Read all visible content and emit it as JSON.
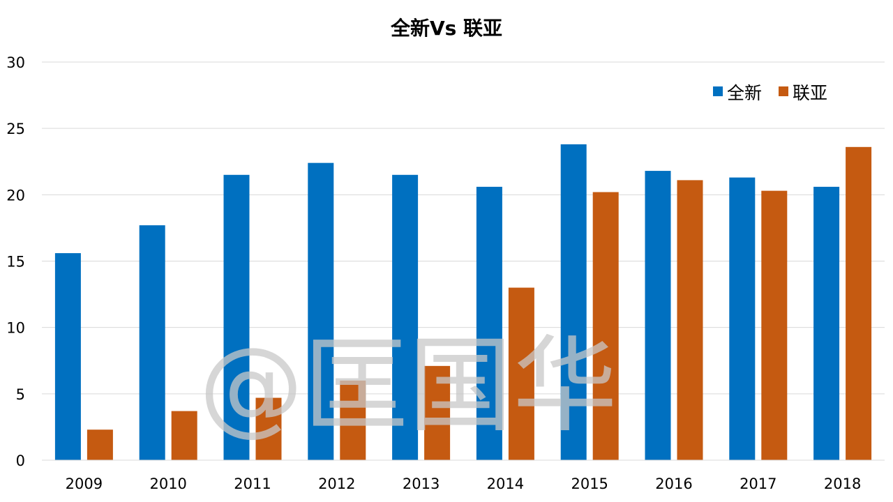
{
  "chart_data": {
    "type": "bar",
    "title": "全新Vs 联亚",
    "xlabel": "",
    "ylabel": "",
    "categories": [
      "2009",
      "2010",
      "2011",
      "2012",
      "2013",
      "2014",
      "2015",
      "2016",
      "2017",
      "2018"
    ],
    "series": [
      {
        "name": "全新",
        "color": "#0070C0",
        "values": [
          15.6,
          17.7,
          21.5,
          22.4,
          21.5,
          20.6,
          23.8,
          21.8,
          21.3,
          20.6
        ]
      },
      {
        "name": "联亚",
        "color": "#C55A11",
        "values": [
          2.3,
          3.7,
          4.7,
          6.0,
          7.1,
          13.0,
          20.2,
          21.1,
          20.3,
          23.6
        ]
      }
    ],
    "ylim": [
      0,
      30
    ],
    "yticks": [
      0,
      5,
      10,
      15,
      20,
      25,
      30
    ],
    "grid": true,
    "legend_position": "top-right"
  },
  "watermark": "@匡国华"
}
